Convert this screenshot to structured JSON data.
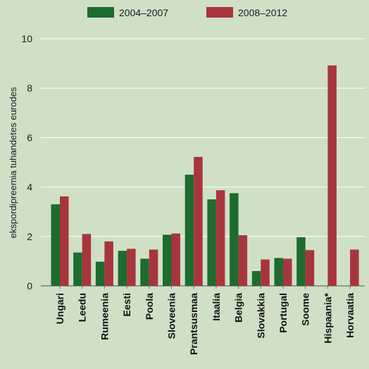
{
  "chart_data": {
    "type": "bar",
    "title": "",
    "xlabel": "",
    "ylabel": "ekspordipreemia tuhandetes eurodes",
    "ylim": [
      0,
      10
    ],
    "yticks": [
      0,
      2,
      4,
      6,
      8,
      10
    ],
    "grid": true,
    "legend_position": "top-center",
    "categories": [
      "Ungari",
      "Leedu",
      "Rumeenia",
      "Eesti",
      "Poola",
      "Sloveenia",
      "Prantsusmaa",
      "Itaalia",
      "Belgia",
      "Slovakkia",
      "Portugal",
      "Soome",
      "Hispaania*",
      "Horvaatia"
    ],
    "series": [
      {
        "name": "2004–2007",
        "color": "#1e6b30",
        "values": [
          3.3,
          1.35,
          0.98,
          1.42,
          1.1,
          2.07,
          4.5,
          3.5,
          3.75,
          0.6,
          1.13,
          1.97,
          null,
          null
        ]
      },
      {
        "name": "2008–2012",
        "color": "#a8353d",
        "values": [
          3.62,
          2.1,
          1.8,
          1.5,
          1.47,
          2.12,
          5.22,
          3.87,
          2.05,
          1.07,
          1.1,
          1.45,
          8.92,
          1.47
        ]
      }
    ]
  }
}
